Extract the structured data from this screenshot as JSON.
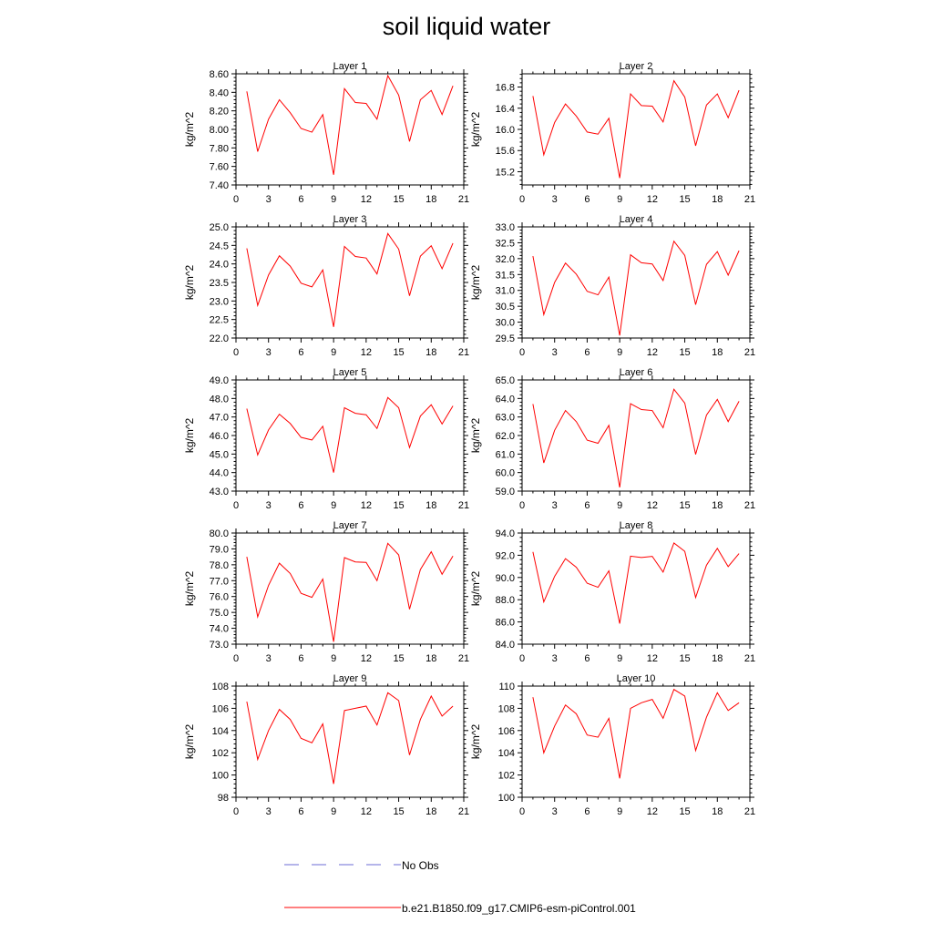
{
  "title": "soil liquid water",
  "colors": {
    "model": "#ff0000",
    "obs": "#6b6bd6",
    "axis": "#000000"
  },
  "legend": {
    "obs_label": "No Obs",
    "model_label": "b.e21.B1850.f09_g17.CMIP6-esm-piControl.001"
  },
  "chart_data": [
    {
      "type": "line",
      "title": "Layer 1",
      "ylabel": "kg/m^2",
      "x": [
        1,
        2,
        3,
        4,
        5,
        6,
        7,
        8,
        9,
        10,
        11,
        12,
        13,
        14,
        15,
        16,
        17,
        18,
        19,
        20
      ],
      "xticks": [
        "0",
        "3",
        "6",
        "9",
        "12",
        "15",
        "18",
        "21"
      ],
      "xlim": [
        0,
        21
      ],
      "yticks": [
        "7.40",
        "7.60",
        "7.80",
        "8.00",
        "8.20",
        "8.40",
        "8.60"
      ],
      "ylim": [
        7.4,
        8.6
      ],
      "series": [
        {
          "name": "b.e21.B1850.f09_g17.CMIP6-esm-piControl.001",
          "values": [
            8.41,
            7.76,
            8.11,
            8.32,
            8.18,
            8.01,
            7.97,
            8.16,
            7.51,
            8.44,
            8.29,
            8.28,
            8.11,
            8.58,
            8.37,
            7.87,
            8.32,
            8.42,
            8.16,
            8.47
          ]
        }
      ]
    },
    {
      "type": "line",
      "title": "Layer 2",
      "ylabel": "kg/m^2",
      "x": [
        1,
        2,
        3,
        4,
        5,
        6,
        7,
        8,
        9,
        10,
        11,
        12,
        13,
        14,
        15,
        16,
        17,
        18,
        19,
        20
      ],
      "xticks": [
        "0",
        "3",
        "6",
        "9",
        "12",
        "15",
        "18",
        "21"
      ],
      "xlim": [
        0,
        21
      ],
      "yticks": [
        "15.2",
        "15.6",
        "16.0",
        "16.4",
        "16.8"
      ],
      "ylim": [
        14.95,
        17.05
      ],
      "series": [
        {
          "name": "b.e21.B1850.f09_g17.CMIP6-esm-piControl.001",
          "values": [
            16.63,
            15.52,
            16.13,
            16.48,
            16.25,
            15.95,
            15.91,
            16.21,
            15.08,
            16.67,
            16.45,
            16.44,
            16.14,
            16.92,
            16.61,
            15.69,
            16.46,
            16.67,
            16.22,
            16.74
          ]
        }
      ]
    },
    {
      "type": "line",
      "title": "Layer 3",
      "ylabel": "kg/m^2",
      "x": [
        1,
        2,
        3,
        4,
        5,
        6,
        7,
        8,
        9,
        10,
        11,
        12,
        13,
        14,
        15,
        16,
        17,
        18,
        19,
        20
      ],
      "xticks": [
        "0",
        "3",
        "6",
        "9",
        "12",
        "15",
        "18",
        "21"
      ],
      "xlim": [
        0,
        21
      ],
      "yticks": [
        "22.0",
        "22.5",
        "23.0",
        "23.5",
        "24.0",
        "24.5",
        "25.0"
      ],
      "ylim": [
        22.0,
        25.0
      ],
      "series": [
        {
          "name": "b.e21.B1850.f09_g17.CMIP6-esm-piControl.001",
          "values": [
            24.42,
            22.88,
            23.7,
            24.22,
            23.94,
            23.48,
            23.38,
            23.84,
            22.3,
            24.47,
            24.2,
            24.16,
            23.73,
            24.82,
            24.4,
            23.14,
            24.21,
            24.49,
            23.87,
            24.56
          ]
        }
      ]
    },
    {
      "type": "line",
      "title": "Layer 4",
      "ylabel": "kg/m^2",
      "x": [
        1,
        2,
        3,
        4,
        5,
        6,
        7,
        8,
        9,
        10,
        11,
        12,
        13,
        14,
        15,
        16,
        17,
        18,
        19,
        20
      ],
      "xticks": [
        "0",
        "3",
        "6",
        "9",
        "12",
        "15",
        "18",
        "21"
      ],
      "xlim": [
        0,
        21
      ],
      "yticks": [
        "29.5",
        "30.0",
        "30.5",
        "31.0",
        "31.5",
        "32.0",
        "32.5",
        "33.0"
      ],
      "ylim": [
        29.5,
        33.0
      ],
      "series": [
        {
          "name": "b.e21.B1850.f09_g17.CMIP6-esm-piControl.001",
          "values": [
            32.08,
            30.24,
            31.25,
            31.86,
            31.51,
            30.97,
            30.86,
            31.42,
            29.58,
            32.12,
            31.87,
            31.83,
            31.31,
            32.55,
            32.1,
            30.55,
            31.82,
            32.22,
            31.48,
            32.25
          ]
        }
      ]
    },
    {
      "type": "line",
      "title": "Layer 5",
      "ylabel": "kg/m^2",
      "x": [
        1,
        2,
        3,
        4,
        5,
        6,
        7,
        8,
        9,
        10,
        11,
        12,
        13,
        14,
        15,
        16,
        17,
        18,
        19,
        20
      ],
      "xticks": [
        "0",
        "3",
        "6",
        "9",
        "12",
        "15",
        "18",
        "21"
      ],
      "xlim": [
        0,
        21
      ],
      "yticks": [
        "43.0",
        "44.0",
        "45.0",
        "46.0",
        "47.0",
        "48.0",
        "49.0"
      ],
      "ylim": [
        43.0,
        49.0
      ],
      "series": [
        {
          "name": "b.e21.B1850.f09_g17.CMIP6-esm-piControl.001",
          "values": [
            47.45,
            44.95,
            46.3,
            47.15,
            46.65,
            45.9,
            45.76,
            46.5,
            44.0,
            47.5,
            47.2,
            47.12,
            46.38,
            48.05,
            47.5,
            45.35,
            47.05,
            47.66,
            46.62,
            47.6
          ]
        }
      ]
    },
    {
      "type": "line",
      "title": "Layer 6",
      "ylabel": "kg/m^2",
      "x": [
        1,
        2,
        3,
        4,
        5,
        6,
        7,
        8,
        9,
        10,
        11,
        12,
        13,
        14,
        15,
        16,
        17,
        18,
        19,
        20
      ],
      "xticks": [
        "0",
        "3",
        "6",
        "9",
        "12",
        "15",
        "18",
        "21"
      ],
      "xlim": [
        0,
        21
      ],
      "yticks": [
        "59.0",
        "60.0",
        "61.0",
        "62.0",
        "63.0",
        "64.0",
        "65.0"
      ],
      "ylim": [
        59.0,
        65.0
      ],
      "series": [
        {
          "name": "b.e21.B1850.f09_g17.CMIP6-esm-piControl.001",
          "values": [
            63.7,
            60.52,
            62.28,
            63.35,
            62.75,
            61.75,
            61.58,
            62.55,
            59.2,
            63.72,
            63.4,
            63.35,
            62.42,
            64.5,
            63.75,
            60.98,
            63.1,
            63.95,
            62.75,
            63.85
          ]
        }
      ]
    },
    {
      "type": "line",
      "title": "Layer 7",
      "ylabel": "kg/m^2",
      "x": [
        1,
        2,
        3,
        4,
        5,
        6,
        7,
        8,
        9,
        10,
        11,
        12,
        13,
        14,
        15,
        16,
        17,
        18,
        19,
        20
      ],
      "xticks": [
        "0",
        "3",
        "6",
        "9",
        "12",
        "15",
        "18",
        "21"
      ],
      "xlim": [
        0,
        21
      ],
      "yticks": [
        "73.0",
        "74.0",
        "75.0",
        "76.0",
        "77.0",
        "78.0",
        "79.0",
        "80.0"
      ],
      "ylim": [
        73.0,
        80.0
      ],
      "series": [
        {
          "name": "b.e21.B1850.f09_g17.CMIP6-esm-piControl.001",
          "values": [
            78.5,
            74.72,
            76.7,
            78.1,
            77.45,
            76.2,
            75.95,
            77.1,
            73.15,
            78.45,
            78.18,
            78.15,
            77.0,
            79.35,
            78.62,
            75.2,
            77.7,
            78.82,
            77.4,
            78.55
          ]
        }
      ]
    },
    {
      "type": "line",
      "title": "Layer 8",
      "ylabel": "kg/m^2",
      "x": [
        1,
        2,
        3,
        4,
        5,
        6,
        7,
        8,
        9,
        10,
        11,
        12,
        13,
        14,
        15,
        16,
        17,
        18,
        19,
        20
      ],
      "xticks": [
        "0",
        "3",
        "6",
        "9",
        "12",
        "15",
        "18",
        "21"
      ],
      "xlim": [
        0,
        21
      ],
      "yticks": [
        "84.0",
        "86.0",
        "88.0",
        "90.0",
        "92.0",
        "94.0"
      ],
      "ylim": [
        84.0,
        94.0
      ],
      "series": [
        {
          "name": "b.e21.B1850.f09_g17.CMIP6-esm-piControl.001",
          "values": [
            92.3,
            87.8,
            90.1,
            91.7,
            90.92,
            89.48,
            89.12,
            90.6,
            85.85,
            91.92,
            91.8,
            91.9,
            90.48,
            93.1,
            92.35,
            88.2,
            91.1,
            92.62,
            90.98,
            92.15
          ]
        }
      ]
    },
    {
      "type": "line",
      "title": "Layer 9",
      "ylabel": "kg/m^2",
      "x": [
        1,
        2,
        3,
        4,
        5,
        6,
        7,
        8,
        9,
        10,
        11,
        12,
        13,
        14,
        15,
        16,
        17,
        18,
        19,
        20
      ],
      "xticks": [
        "0",
        "3",
        "6",
        "9",
        "12",
        "15",
        "18",
        "21"
      ],
      "xlim": [
        0,
        21
      ],
      "yticks": [
        "98",
        "100",
        "102",
        "104",
        "106",
        "108"
      ],
      "ylim": [
        98,
        108
      ],
      "series": [
        {
          "name": "b.e21.B1850.f09_g17.CMIP6-esm-piControl.001",
          "values": [
            106.6,
            101.4,
            104.0,
            105.9,
            105.0,
            103.3,
            102.9,
            104.6,
            99.2,
            105.8,
            106.0,
            106.2,
            104.5,
            107.4,
            106.7,
            101.8,
            105.0,
            107.1,
            105.3,
            106.2
          ]
        }
      ]
    },
    {
      "type": "line",
      "title": "Layer 10",
      "ylabel": "kg/m^2",
      "x": [
        1,
        2,
        3,
        4,
        5,
        6,
        7,
        8,
        9,
        10,
        11,
        12,
        13,
        14,
        15,
        16,
        17,
        18,
        19,
        20
      ],
      "xticks": [
        "0",
        "3",
        "6",
        "9",
        "12",
        "15",
        "18",
        "21"
      ],
      "xlim": [
        0,
        21
      ],
      "yticks": [
        "100",
        "102",
        "104",
        "106",
        "108",
        "110"
      ],
      "ylim": [
        100,
        110
      ],
      "series": [
        {
          "name": "b.e21.B1850.f09_g17.CMIP6-esm-piControl.001",
          "values": [
            109.0,
            104.0,
            106.4,
            108.3,
            107.5,
            105.6,
            105.4,
            107.1,
            101.7,
            108.0,
            108.5,
            108.8,
            107.1,
            109.7,
            109.1,
            104.2,
            107.2,
            109.4,
            107.8,
            108.5
          ]
        }
      ]
    }
  ]
}
